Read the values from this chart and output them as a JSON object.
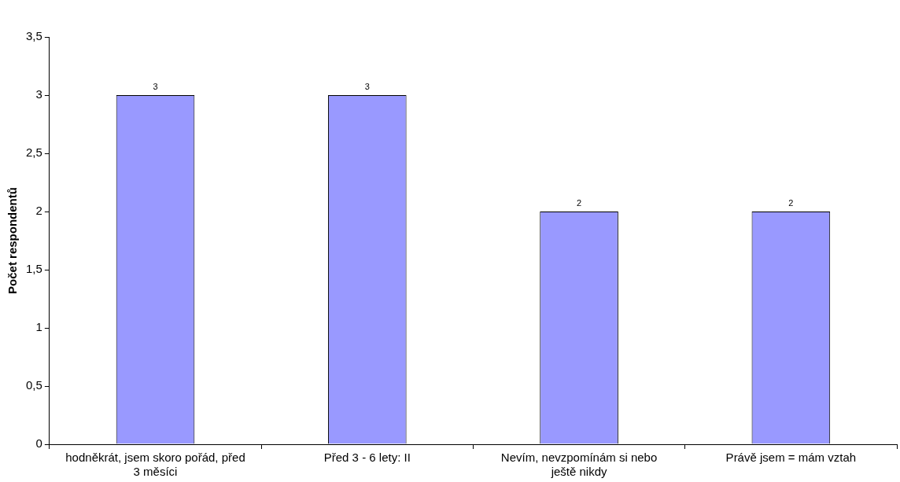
{
  "chart_data": {
    "type": "bar",
    "ylabel": "Počet respondentů",
    "categories": [
      "hodněkrát, jsem skoro pořád, před 3 měsíci",
      "Před 3 - 6 lety: II",
      "Nevím, nevzpomínám si nebo ještě nikdy",
      "Právě jsem = mám vztah"
    ],
    "values": [
      3,
      3,
      2,
      2
    ],
    "color": "#9999ff",
    "ylim": [
      0,
      3.5
    ],
    "yticks": [
      0,
      {
        "value": 0.5,
        "label": "0,5"
      },
      1,
      {
        "value": 1.5,
        "label": "1,5"
      },
      2,
      {
        "value": 2.5,
        "label": "2,5"
      },
      3,
      {
        "value": 3.5,
        "label": "3,5"
      }
    ],
    "grid": false,
    "legend": false,
    "data_labels": true
  }
}
